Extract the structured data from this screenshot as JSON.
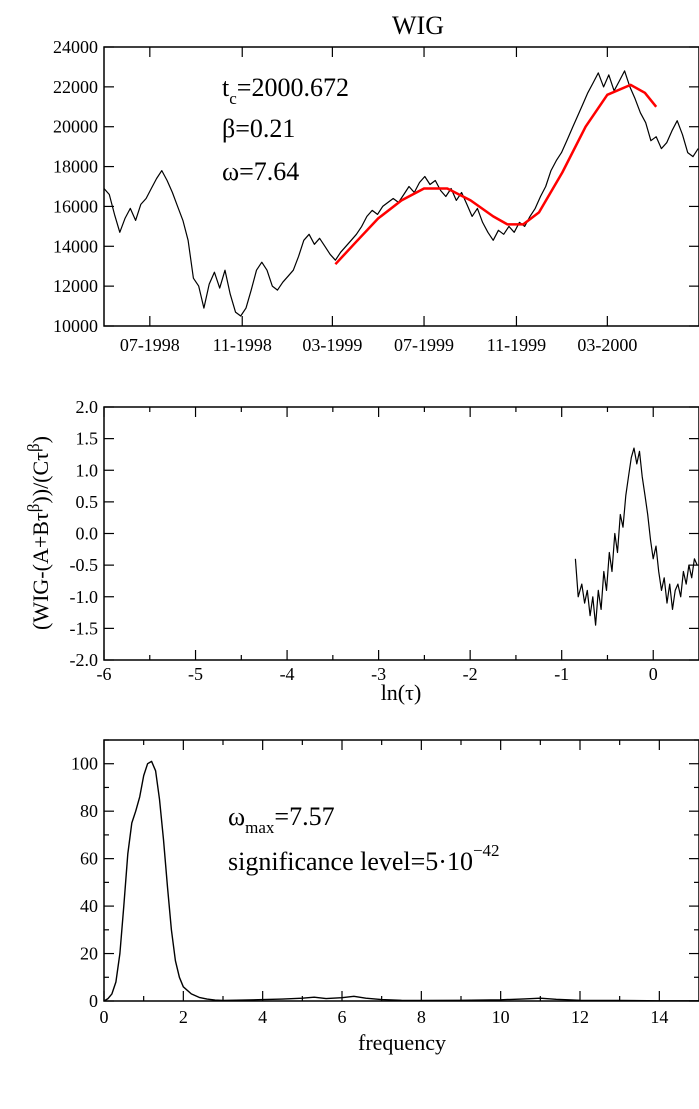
{
  "title": "WIG",
  "chart_data": [
    {
      "type": "line",
      "ylim": [
        10000,
        24000
      ],
      "xlim": [
        "1998-05",
        "2000-07"
      ],
      "yticks": [
        10000,
        12000,
        14000,
        16000,
        18000,
        20000,
        22000,
        24000
      ],
      "xticks": [
        {
          "date": "1998-07",
          "label": "07-1998"
        },
        {
          "date": "1998-11",
          "label": "11-1998"
        },
        {
          "date": "1999-03",
          "label": "03-1999"
        },
        {
          "date": "1999-07",
          "label": "07-1999"
        },
        {
          "date": "1999-11",
          "label": "11-1999"
        },
        {
          "date": "2000-03",
          "label": "03-2000"
        }
      ],
      "annotations": {
        "tc_sym": "t",
        "tc_sub": "c",
        "tc_val": "=2000.672",
        "beta": "β=0.21",
        "omega": "ω=7.64"
      },
      "series": [
        {
          "color": "#000000",
          "points": [
            [
              "1998-05-01",
              16900
            ],
            [
              "1998-05-08",
              16600
            ],
            [
              "1998-05-15",
              15600
            ],
            [
              "1998-05-22",
              14700
            ],
            [
              "1998-05-29",
              15400
            ],
            [
              "1998-06-05",
              15900
            ],
            [
              "1998-06-12",
              15300
            ],
            [
              "1998-06-19",
              16100
            ],
            [
              "1998-06-26",
              16400
            ],
            [
              "1998-07-03",
              16900
            ],
            [
              "1998-07-10",
              17400
            ],
            [
              "1998-07-17",
              17800
            ],
            [
              "1998-07-24",
              17300
            ],
            [
              "1998-07-31",
              16700
            ],
            [
              "1998-08-07",
              16000
            ],
            [
              "1998-08-14",
              15300
            ],
            [
              "1998-08-21",
              14300
            ],
            [
              "1998-08-28",
              12400
            ],
            [
              "1998-09-04",
              12000
            ],
            [
              "1998-09-11",
              10900
            ],
            [
              "1998-09-18",
              12100
            ],
            [
              "1998-09-25",
              12700
            ],
            [
              "1998-10-02",
              11900
            ],
            [
              "1998-10-09",
              12800
            ],
            [
              "1998-10-16",
              11600
            ],
            [
              "1998-10-23",
              10700
            ],
            [
              "1998-10-30",
              10500
            ],
            [
              "1998-11-06",
              10900
            ],
            [
              "1998-11-13",
              11800
            ],
            [
              "1998-11-20",
              12800
            ],
            [
              "1998-11-27",
              13200
            ],
            [
              "1998-12-04",
              12800
            ],
            [
              "1998-12-11",
              12000
            ],
            [
              "1998-12-18",
              11800
            ],
            [
              "1998-12-25",
              12200
            ],
            [
              "1999-01-01",
              12500
            ],
            [
              "1999-01-08",
              12800
            ],
            [
              "1999-01-15",
              13500
            ],
            [
              "1999-01-22",
              14300
            ],
            [
              "1999-01-29",
              14600
            ],
            [
              "1999-02-05",
              14100
            ],
            [
              "1999-02-12",
              14400
            ],
            [
              "1999-02-19",
              14000
            ],
            [
              "1999-02-26",
              13600
            ],
            [
              "1999-03-05",
              13300
            ],
            [
              "1999-03-12",
              13700
            ],
            [
              "1999-03-19",
              14000
            ],
            [
              "1999-03-26",
              14300
            ],
            [
              "1999-04-02",
              14600
            ],
            [
              "1999-04-09",
              15000
            ],
            [
              "1999-04-16",
              15500
            ],
            [
              "1999-04-23",
              15800
            ],
            [
              "1999-04-30",
              15600
            ],
            [
              "1999-05-07",
              16000
            ],
            [
              "1999-05-14",
              16200
            ],
            [
              "1999-05-21",
              16400
            ],
            [
              "1999-05-28",
              16200
            ],
            [
              "1999-06-04",
              16600
            ],
            [
              "1999-06-11",
              17000
            ],
            [
              "1999-06-18",
              16700
            ],
            [
              "1999-06-25",
              17200
            ],
            [
              "1999-07-02",
              17500
            ],
            [
              "1999-07-09",
              17100
            ],
            [
              "1999-07-16",
              17300
            ],
            [
              "1999-07-23",
              16800
            ],
            [
              "1999-07-30",
              16500
            ],
            [
              "1999-08-06",
              16900
            ],
            [
              "1999-08-13",
              16300
            ],
            [
              "1999-08-20",
              16700
            ],
            [
              "1999-08-27",
              16100
            ],
            [
              "1999-09-03",
              15500
            ],
            [
              "1999-09-10",
              15900
            ],
            [
              "1999-09-17",
              15200
            ],
            [
              "1999-09-24",
              14700
            ],
            [
              "1999-10-01",
              14300
            ],
            [
              "1999-10-08",
              14800
            ],
            [
              "1999-10-15",
              14600
            ],
            [
              "1999-10-22",
              15000
            ],
            [
              "1999-10-29",
              14700
            ],
            [
              "1999-11-05",
              15200
            ],
            [
              "1999-11-12",
              15000
            ],
            [
              "1999-11-19",
              15500
            ],
            [
              "1999-11-26",
              15900
            ],
            [
              "1999-12-03",
              16500
            ],
            [
              "1999-12-10",
              17000
            ],
            [
              "1999-12-17",
              17800
            ],
            [
              "1999-12-24",
              18300
            ],
            [
              "1999-12-31",
              18700
            ],
            [
              "2000-01-07",
              19300
            ],
            [
              "2000-01-14",
              19900
            ],
            [
              "2000-01-21",
              20500
            ],
            [
              "2000-01-28",
              21100
            ],
            [
              "2000-02-04",
              21700
            ],
            [
              "2000-02-11",
              22200
            ],
            [
              "2000-02-18",
              22700
            ],
            [
              "2000-02-25",
              22000
            ],
            [
              "2000-03-03",
              22600
            ],
            [
              "2000-03-10",
              21800
            ],
            [
              "2000-03-17",
              22300
            ],
            [
              "2000-03-24",
              22800
            ],
            [
              "2000-03-31",
              22000
            ],
            [
              "2000-04-07",
              21400
            ],
            [
              "2000-04-14",
              20700
            ],
            [
              "2000-04-21",
              20200
            ],
            [
              "2000-04-28",
              19300
            ],
            [
              "2000-05-05",
              19500
            ],
            [
              "2000-05-12",
              18900
            ],
            [
              "2000-05-19",
              19200
            ],
            [
              "2000-05-26",
              19800
            ],
            [
              "2000-06-02",
              20300
            ],
            [
              "2000-06-09",
              19600
            ],
            [
              "2000-06-16",
              18700
            ],
            [
              "2000-06-23",
              18500
            ],
            [
              "2000-06-30",
              18900
            ]
          ]
        },
        {
          "color": "#ff0000",
          "points": [
            [
              "1999-03-05",
              13100
            ],
            [
              "1999-04-01",
              14200
            ],
            [
              "1999-05-01",
              15400
            ],
            [
              "1999-06-01",
              16300
            ],
            [
              "1999-07-01",
              16900
            ],
            [
              "1999-08-01",
              16900
            ],
            [
              "1999-09-01",
              16300
            ],
            [
              "1999-10-01",
              15500
            ],
            [
              "1999-10-20",
              15100
            ],
            [
              "1999-11-10",
              15100
            ],
            [
              "1999-12-01",
              15700
            ],
            [
              "2000-01-01",
              17700
            ],
            [
              "2000-02-01",
              20000
            ],
            [
              "2000-03-01",
              21600
            ],
            [
              "2000-04-01",
              22100
            ],
            [
              "2000-04-20",
              21700
            ],
            [
              "2000-05-05",
              21000
            ]
          ]
        }
      ]
    },
    {
      "type": "line",
      "xlabel": "ln(τ)",
      "ylabel": "(WIG-(A+Bτβ))/(Cτβ)",
      "xlim": [
        -6,
        0.5
      ],
      "ylim": [
        -2.0,
        2.0
      ],
      "xticks": [
        -6,
        -5,
        -4,
        -3,
        -2,
        -1,
        0
      ],
      "xtick_labels": [
        "-6",
        "-5",
        "-4",
        "-3",
        "-2",
        "-1",
        "0"
      ],
      "yticks": [
        -2.0,
        -1.5,
        -1.0,
        -0.5,
        0.0,
        0.5,
        1.0,
        1.5,
        2.0
      ],
      "ytick_labels": [
        "-2.0",
        "-1.5",
        "-1.0",
        "-0.5",
        "0.0",
        "0.5",
        "1.0",
        "1.5",
        "2.0"
      ],
      "series": [
        {
          "color": "#000000",
          "x": [
            -0.85,
            -0.82,
            -0.78,
            -0.75,
            -0.72,
            -0.69,
            -0.66,
            -0.63,
            -0.6,
            -0.57,
            -0.54,
            -0.51,
            -0.48,
            -0.45,
            -0.42,
            -0.39,
            -0.36,
            -0.33,
            -0.3,
            -0.27,
            -0.24,
            -0.21,
            -0.18,
            -0.15,
            -0.12,
            -0.09,
            -0.06,
            -0.03,
            0.0,
            0.03,
            0.06,
            0.09,
            0.12,
            0.15,
            0.18,
            0.21,
            0.24,
            0.27,
            0.3,
            0.33,
            0.36,
            0.39,
            0.42,
            0.45,
            0.48
          ],
          "y": [
            -0.4,
            -1.0,
            -0.8,
            -1.1,
            -0.9,
            -1.3,
            -1.0,
            -1.45,
            -0.9,
            -1.2,
            -0.6,
            -0.9,
            -0.3,
            -0.6,
            0.0,
            -0.3,
            0.3,
            0.1,
            0.6,
            0.9,
            1.2,
            1.35,
            1.1,
            1.3,
            0.9,
            0.6,
            0.3,
            -0.1,
            -0.4,
            -0.2,
            -0.6,
            -0.9,
            -0.7,
            -1.1,
            -0.8,
            -1.2,
            -0.9,
            -0.8,
            -1.0,
            -0.6,
            -0.8,
            -0.5,
            -0.7,
            -0.4,
            -0.5
          ]
        }
      ]
    },
    {
      "type": "line",
      "xlabel": "frequency",
      "xlim": [
        0,
        15
      ],
      "ylim": [
        0,
        110
      ],
      "xticks": [
        0,
        2,
        4,
        6,
        8,
        10,
        12,
        14
      ],
      "yticks": [
        0,
        20,
        40,
        60,
        80,
        100
      ],
      "annotations": {
        "omega_sym": "ω",
        "omega_sub": "max",
        "omega_val": "=7.57",
        "sig_text": "significance level=5·10",
        "sig_exp": "−42"
      },
      "series": [
        {
          "color": "#000000",
          "x": [
            0,
            0.1,
            0.2,
            0.3,
            0.4,
            0.5,
            0.6,
            0.7,
            0.8,
            0.9,
            1.0,
            1.1,
            1.2,
            1.3,
            1.4,
            1.5,
            1.6,
            1.7,
            1.8,
            1.9,
            2.0,
            2.2,
            2.4,
            2.6,
            2.8,
            3.0,
            3.5,
            4.0,
            4.5,
            5.0,
            5.3,
            5.6,
            6.0,
            6.3,
            6.6,
            7.0,
            7.5,
            8.0,
            9.0,
            10.0,
            10.6,
            11.0,
            11.4,
            12.0,
            13.0,
            14.0,
            15.0
          ],
          "y": [
            0,
            1,
            3,
            8,
            20,
            40,
            62,
            75,
            80,
            86,
            95,
            100,
            101,
            97,
            85,
            68,
            48,
            30,
            17,
            10,
            6,
            3,
            1.5,
            0.8,
            0.4,
            0.2,
            0.4,
            0.6,
            0.8,
            1.2,
            1.6,
            1.0,
            1.4,
            2.0,
            1.2,
            0.6,
            0.3,
            0.2,
            0.3,
            0.5,
            0.9,
            1.2,
            0.7,
            0.3,
            0.2,
            0.1,
            0.1
          ]
        }
      ]
    }
  ]
}
